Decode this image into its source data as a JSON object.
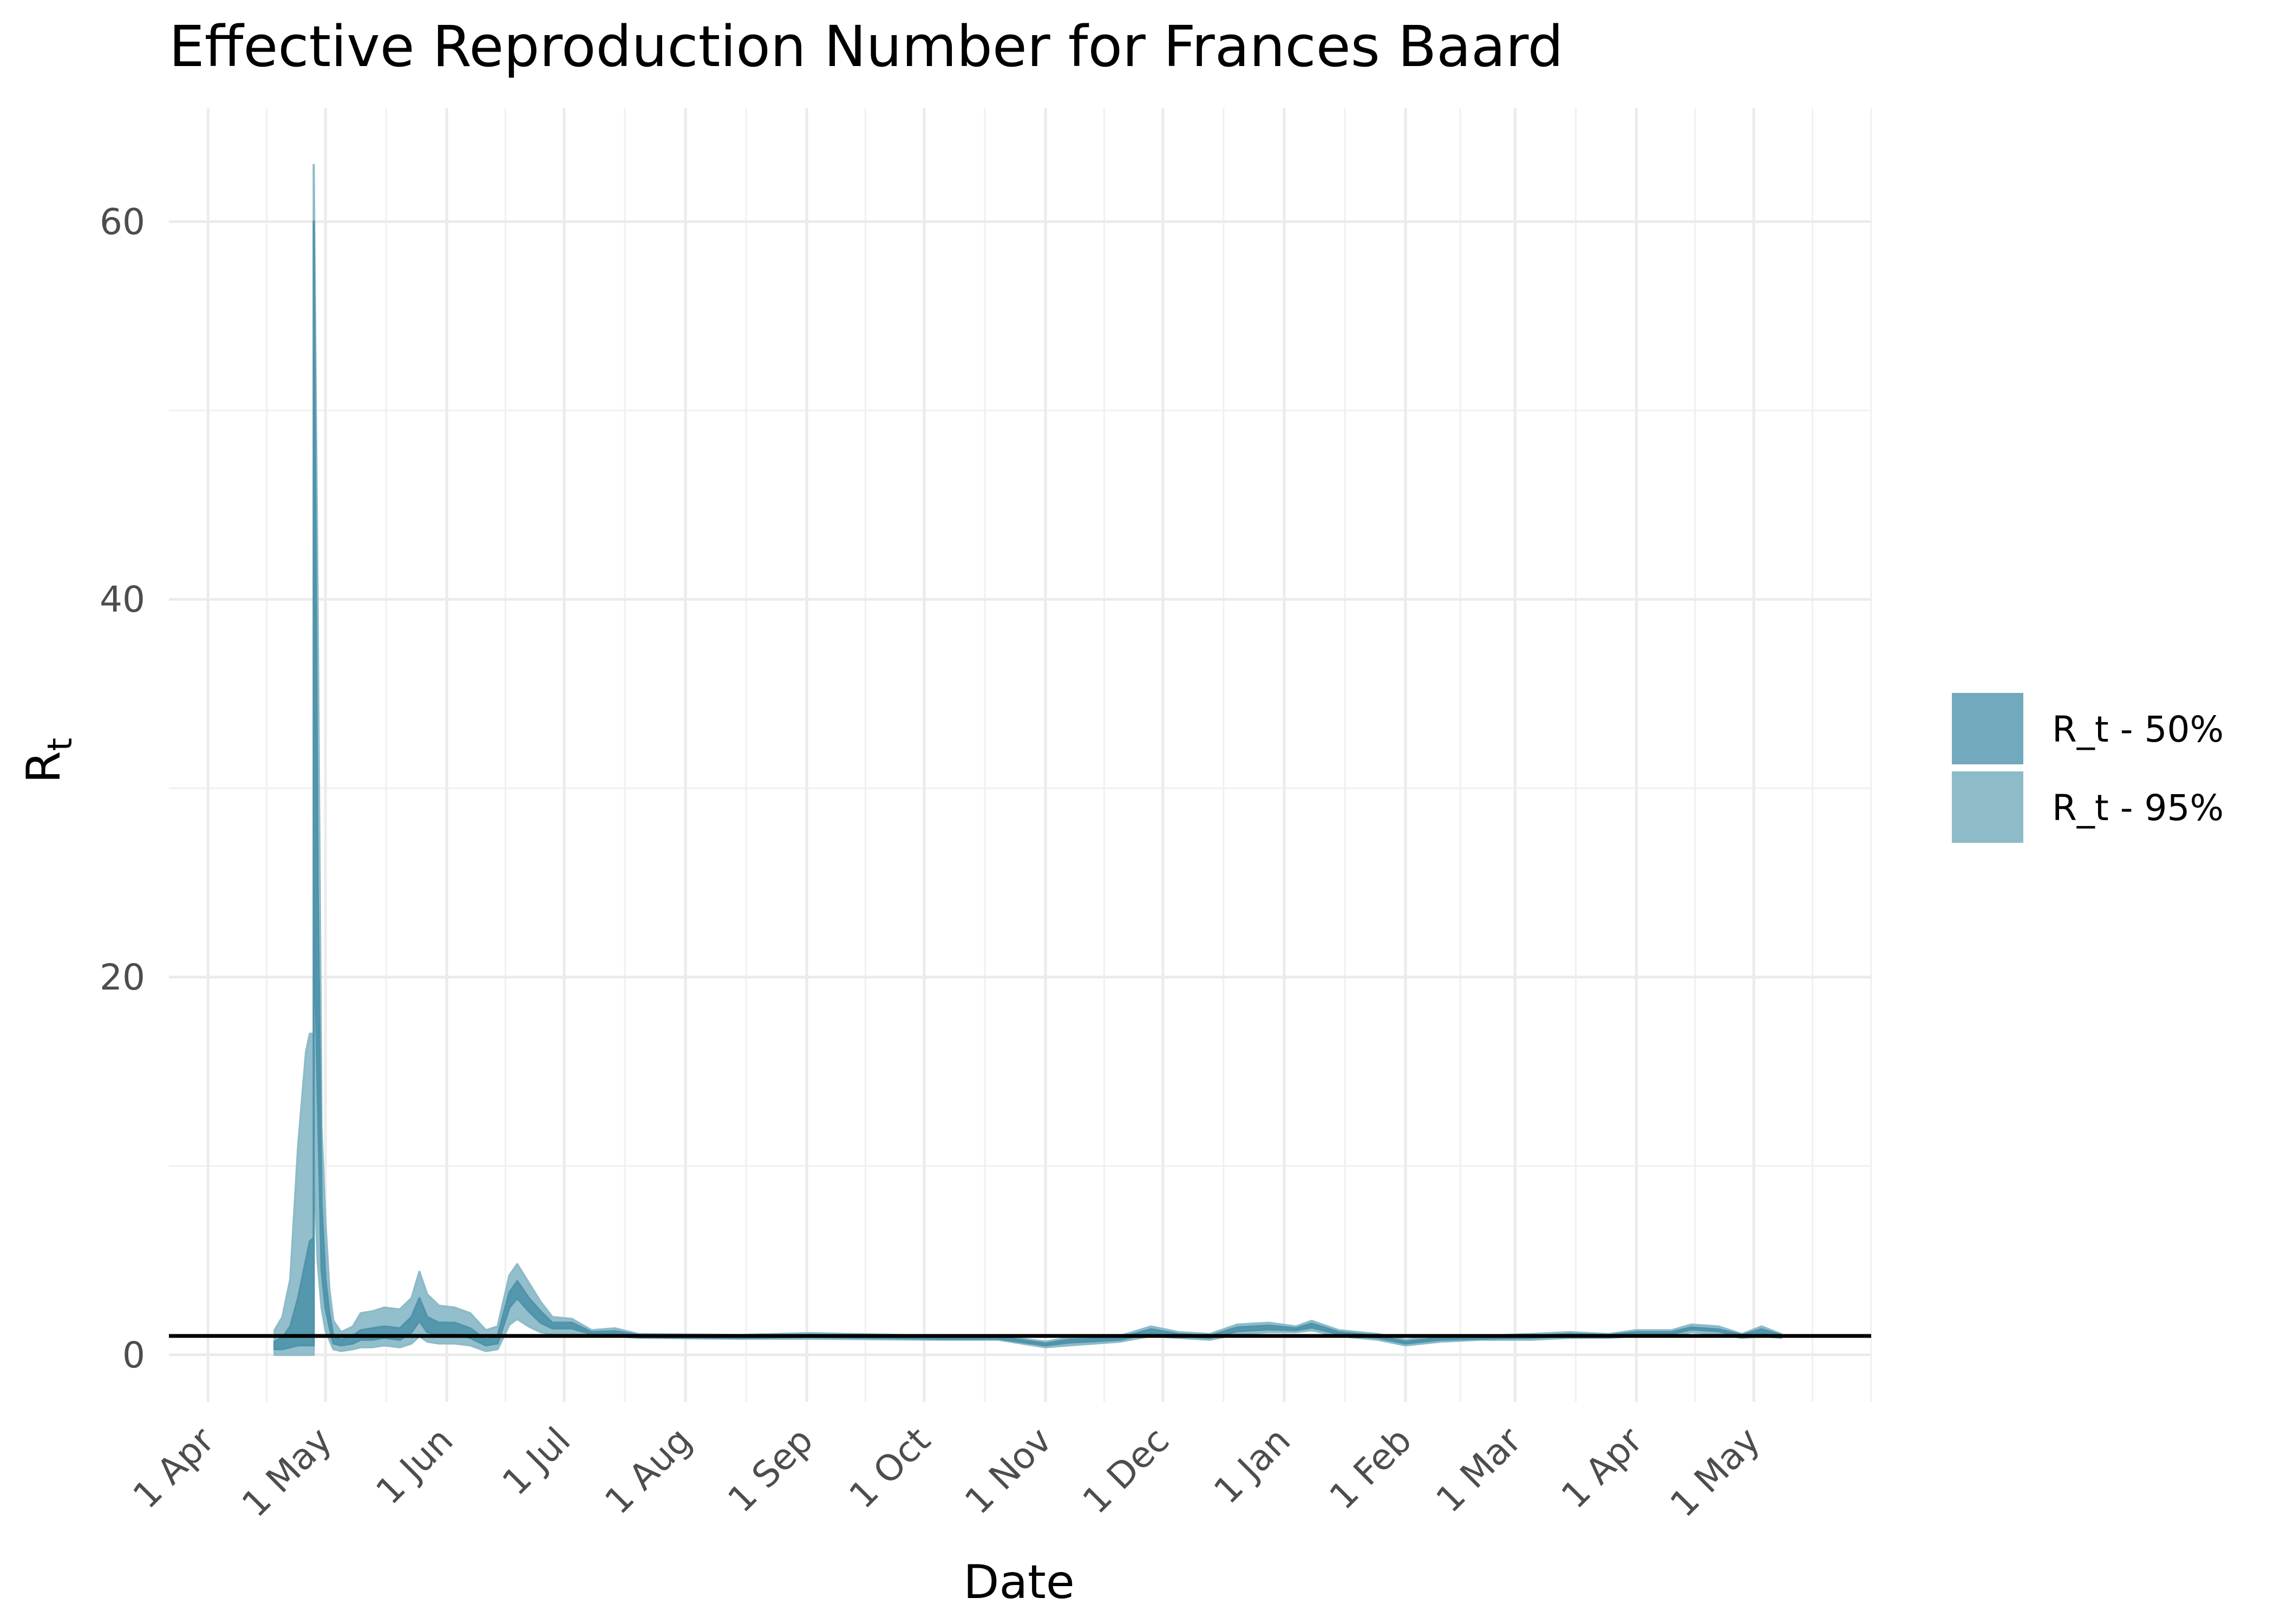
{
  "chart_data": {
    "type": "area",
    "title": "Effective Reproduction Number for Frances Baard",
    "xlabel": "Date",
    "ylabel": "R",
    "ylabel_subscript": "t",
    "xlim": [
      "2020-03-22",
      "2021-05-31"
    ],
    "ylim": [
      -2.5,
      66
    ],
    "y_ticks": [
      0,
      20,
      40,
      60
    ],
    "x_ticks": [
      {
        "date": "2020-04-01",
        "label": "1 Apr"
      },
      {
        "date": "2020-05-01",
        "label": "1 May"
      },
      {
        "date": "2020-06-01",
        "label": "1 Jun"
      },
      {
        "date": "2020-07-01",
        "label": "1 Jul"
      },
      {
        "date": "2020-08-01",
        "label": "1 Aug"
      },
      {
        "date": "2020-09-01",
        "label": "1 Sep"
      },
      {
        "date": "2020-10-01",
        "label": "1 Oct"
      },
      {
        "date": "2020-11-01",
        "label": "1 Nov"
      },
      {
        "date": "2020-12-01",
        "label": "1 Dec"
      },
      {
        "date": "2021-01-01",
        "label": "1 Jan"
      },
      {
        "date": "2021-02-01",
        "label": "1 Feb"
      },
      {
        "date": "2021-03-01",
        "label": "1 Mar"
      },
      {
        "date": "2021-04-01",
        "label": "1 Apr"
      },
      {
        "date": "2021-05-01",
        "label": "1 May"
      }
    ],
    "reference_line": 1,
    "grid": true,
    "legend_position": "right",
    "series": [
      {
        "name": "R_t - 95%",
        "color": "#8dbbc8",
        "points": [
          [
            "2020-04-18",
            0,
            1.3
          ],
          [
            "2020-04-20",
            0,
            2
          ],
          [
            "2020-04-22",
            0,
            4
          ],
          [
            "2020-04-24",
            0,
            11
          ],
          [
            "2020-04-26",
            0,
            16
          ],
          [
            "2020-04-27",
            0,
            17
          ],
          [
            "2020-04-28",
            0,
            17
          ],
          [
            "2020-04-28",
            11,
            63
          ],
          [
            "2020-04-29",
            5,
            40
          ],
          [
            "2020-04-30",
            2.5,
            12
          ],
          [
            "2020-05-01",
            1.3,
            7
          ],
          [
            "2020-05-02",
            0.8,
            3.5
          ],
          [
            "2020-05-03",
            0.3,
            1.8
          ],
          [
            "2020-05-05",
            0.2,
            1.2
          ],
          [
            "2020-05-08",
            0.3,
            1.5
          ],
          [
            "2020-05-10",
            0.4,
            2.2
          ],
          [
            "2020-05-13",
            0.4,
            2.3
          ],
          [
            "2020-05-16",
            0.5,
            2.5
          ],
          [
            "2020-05-20",
            0.4,
            2.4
          ],
          [
            "2020-05-23",
            0.6,
            3.0
          ],
          [
            "2020-05-25",
            1.0,
            4.4
          ],
          [
            "2020-05-27",
            0.7,
            3.2
          ],
          [
            "2020-05-30",
            0.6,
            2.6
          ],
          [
            "2020-06-03",
            0.6,
            2.5
          ],
          [
            "2020-06-07",
            0.5,
            2.2
          ],
          [
            "2020-06-11",
            0.2,
            1.3
          ],
          [
            "2020-06-14",
            0.3,
            1.5
          ],
          [
            "2020-06-17",
            1.6,
            4.2
          ],
          [
            "2020-06-19",
            1.9,
            4.8
          ],
          [
            "2020-06-22",
            1.5,
            3.8
          ],
          [
            "2020-06-25",
            1.2,
            2.8
          ],
          [
            "2020-06-28",
            1.1,
            2.0
          ],
          [
            "2020-07-03",
            1.1,
            1.9
          ],
          [
            "2020-07-08",
            1.0,
            1.3
          ],
          [
            "2020-07-14",
            1.0,
            1.4
          ],
          [
            "2020-07-20",
            0.9,
            1.1
          ],
          [
            "2020-08-15",
            0.85,
            1.05
          ],
          [
            "2020-09-02",
            0.85,
            1.15
          ],
          [
            "2020-10-05",
            0.8,
            1.0
          ],
          [
            "2020-10-20",
            0.8,
            1.0
          ],
          [
            "2020-11-01",
            0.4,
            0.7
          ],
          [
            "2020-11-07",
            0.5,
            0.9
          ],
          [
            "2020-11-20",
            0.7,
            1.0
          ],
          [
            "2020-11-28",
            1.0,
            1.5
          ],
          [
            "2020-12-05",
            0.9,
            1.2
          ],
          [
            "2020-12-13",
            0.8,
            1.1
          ],
          [
            "2020-12-20",
            1.1,
            1.6
          ],
          [
            "2020-12-28",
            1.2,
            1.7
          ],
          [
            "2021-01-04",
            1.2,
            1.5
          ],
          [
            "2021-01-08",
            1.3,
            1.8
          ],
          [
            "2021-01-15",
            1.0,
            1.3
          ],
          [
            "2021-01-25",
            0.8,
            1.1
          ],
          [
            "2021-02-01",
            0.5,
            0.8
          ],
          [
            "2021-02-10",
            0.7,
            1.0
          ],
          [
            "2021-02-20",
            0.8,
            1.0
          ],
          [
            "2021-03-05",
            0.8,
            1.1
          ],
          [
            "2021-03-15",
            0.9,
            1.2
          ],
          [
            "2021-03-25",
            0.9,
            1.1
          ],
          [
            "2021-04-01",
            1.0,
            1.3
          ],
          [
            "2021-04-10",
            1.0,
            1.3
          ],
          [
            "2021-04-15",
            1.2,
            1.6
          ],
          [
            "2021-04-22",
            1.1,
            1.5
          ],
          [
            "2021-04-28",
            0.9,
            1.1
          ],
          [
            "2021-05-03",
            1.0,
            1.5
          ],
          [
            "2021-05-08",
            0.9,
            1.1
          ]
        ]
      },
      {
        "name": "R_t - 50%",
        "color": "#4f94ab",
        "points": [
          [
            "2020-04-18",
            0.3,
            0.7
          ],
          [
            "2020-04-20",
            0.3,
            0.9
          ],
          [
            "2020-04-22",
            0.4,
            1.5
          ],
          [
            "2020-04-24",
            0.5,
            3
          ],
          [
            "2020-04-26",
            0.5,
            5
          ],
          [
            "2020-04-27",
            0.5,
            6
          ],
          [
            "2020-04-28",
            0.5,
            6.2
          ],
          [
            "2020-04-28",
            25,
            60
          ],
          [
            "2020-04-29",
            14,
            25
          ],
          [
            "2020-04-30",
            4.5,
            8
          ],
          [
            "2020-05-01",
            2.5,
            4
          ],
          [
            "2020-05-02",
            1.5,
            2.2
          ],
          [
            "2020-05-03",
            0.6,
            1.0
          ],
          [
            "2020-05-05",
            0.5,
            0.8
          ],
          [
            "2020-05-08",
            0.6,
            1.0
          ],
          [
            "2020-05-10",
            0.8,
            1.3
          ],
          [
            "2020-05-13",
            0.8,
            1.4
          ],
          [
            "2020-05-16",
            0.9,
            1.5
          ],
          [
            "2020-05-20",
            0.8,
            1.4
          ],
          [
            "2020-05-23",
            1.2,
            2.0
          ],
          [
            "2020-05-25",
            1.8,
            3.0
          ],
          [
            "2020-05-27",
            1.2,
            2.0
          ],
          [
            "2020-05-30",
            1.1,
            1.7
          ],
          [
            "2020-06-03",
            1.1,
            1.7
          ],
          [
            "2020-06-07",
            0.9,
            1.4
          ],
          [
            "2020-06-11",
            0.5,
            0.8
          ],
          [
            "2020-06-14",
            0.6,
            1.0
          ],
          [
            "2020-06-17",
            2.5,
            3.3
          ],
          [
            "2020-06-19",
            3.0,
            3.9
          ],
          [
            "2020-06-22",
            2.3,
            3.0
          ],
          [
            "2020-06-25",
            1.7,
            2.3
          ],
          [
            "2020-06-28",
            1.4,
            1.7
          ],
          [
            "2020-07-03",
            1.4,
            1.7
          ],
          [
            "2020-07-08",
            1.1,
            1.2
          ],
          [
            "2020-07-14",
            1.1,
            1.25
          ],
          [
            "2020-07-20",
            0.95,
            1.05
          ],
          [
            "2020-08-15",
            0.9,
            1.0
          ],
          [
            "2020-09-02",
            0.95,
            1.05
          ],
          [
            "2020-10-05",
            0.85,
            0.95
          ],
          [
            "2020-10-20",
            0.85,
            0.95
          ],
          [
            "2020-11-01",
            0.5,
            0.6
          ],
          [
            "2020-11-07",
            0.65,
            0.8
          ],
          [
            "2020-11-20",
            0.8,
            0.9
          ],
          [
            "2020-11-28",
            1.15,
            1.35
          ],
          [
            "2020-12-05",
            1.0,
            1.1
          ],
          [
            "2020-12-13",
            0.9,
            1.0
          ],
          [
            "2020-12-20",
            1.25,
            1.45
          ],
          [
            "2020-12-28",
            1.35,
            1.55
          ],
          [
            "2021-01-04",
            1.3,
            1.4
          ],
          [
            "2021-01-08",
            1.45,
            1.65
          ],
          [
            "2021-01-15",
            1.1,
            1.2
          ],
          [
            "2021-01-25",
            0.9,
            1.0
          ],
          [
            "2021-02-01",
            0.6,
            0.7
          ],
          [
            "2021-02-10",
            0.8,
            0.9
          ],
          [
            "2021-02-20",
            0.85,
            0.95
          ],
          [
            "2021-03-05",
            0.9,
            1.0
          ],
          [
            "2021-03-15",
            1.0,
            1.1
          ],
          [
            "2021-03-25",
            0.95,
            1.05
          ],
          [
            "2021-04-01",
            1.1,
            1.2
          ],
          [
            "2021-04-10",
            1.1,
            1.2
          ],
          [
            "2021-04-15",
            1.35,
            1.45
          ],
          [
            "2021-04-22",
            1.25,
            1.35
          ],
          [
            "2021-04-28",
            0.95,
            1.05
          ],
          [
            "2021-05-03",
            1.15,
            1.35
          ],
          [
            "2021-05-08",
            0.95,
            1.05
          ]
        ]
      }
    ],
    "legend": [
      {
        "label": "R_t - 50%",
        "color": "#72a9bd"
      },
      {
        "label": "R_t - 95%",
        "color": "#8dbbc8"
      }
    ]
  }
}
